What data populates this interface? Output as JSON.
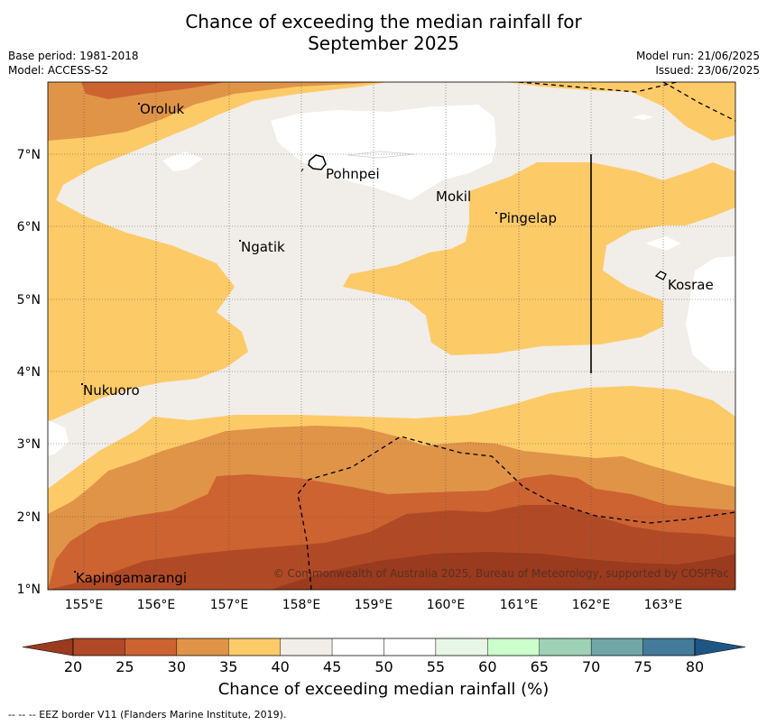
{
  "title_line1": "Chance of exceeding the median rainfall for",
  "title_line2": "September 2025",
  "base_period": "Base period: 1981-2018",
  "model": "Model: ACCESS-S2",
  "model_run": "Model run: 21/06/2025",
  "issued": "Issued: 23/06/2025",
  "copyright": "© Commonwealth of Australia 2025, Bureau of Meteorology, supported by COSPPac",
  "footnote": "--  --  -- EEZ border V11 (Flanders Marine Institute, 2019).",
  "places": {
    "oroluk": "Oroluk",
    "pohnpei": "Pohnpei",
    "mokil": "Mokil",
    "pingelap": "Pingelap",
    "ngatik": "Ngatik",
    "kosrae": "Kosrae",
    "nukuoro": "Nukuoro",
    "kapingamarangi": "Kapingamarangi"
  },
  "x_ticks": [
    "155°E",
    "156°E",
    "157°E",
    "158°E",
    "159°E",
    "160°E",
    "161°E",
    "162°E",
    "163°E"
  ],
  "y_ticks": [
    "7°N",
    "6°N",
    "5°N",
    "4°N",
    "3°N",
    "2°N",
    "1°N"
  ],
  "colorbar": {
    "title": "Chance of exceeding median rainfall (%)",
    "labels": [
      "20",
      "25",
      "30",
      "35",
      "40",
      "45",
      "50",
      "55",
      "60",
      "65",
      "70",
      "75",
      "80"
    ],
    "colors": [
      "#b04a26",
      "#cd6331",
      "#e09448",
      "#fdca68",
      "#f1ede8",
      "#ffffff",
      "#ffffff",
      "#e7f6e6",
      "#ccffcc",
      "#9fd1b7",
      "#70a6a6",
      "#447b9a"
    ],
    "under_color": "#9a3a1e",
    "over_color": "#1e5585"
  }
}
